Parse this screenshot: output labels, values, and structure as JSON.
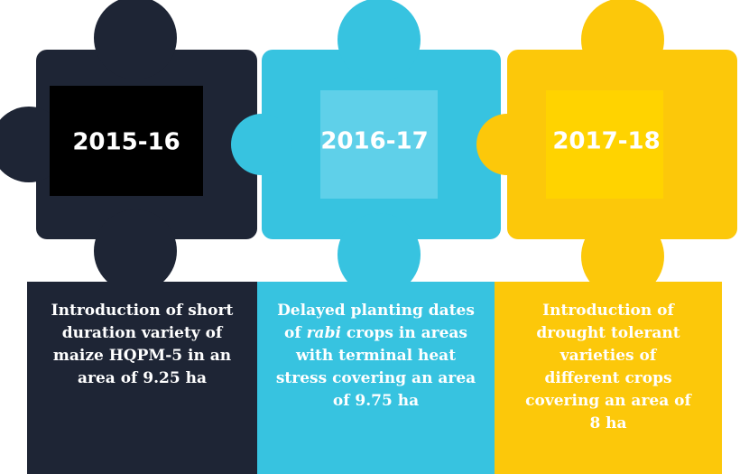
{
  "steps": [
    {
      "year": "2015-16",
      "description": [
        "Introduction of short duration variety of maize HQPM-5 in an area of 9.25 ha"
      ]
    },
    {
      "year": "2016-17",
      "description": [
        "Delayed planting dates of ",
        "rabi",
        " crops in areas with terminal heat stress covering an area of 9.75 ha"
      ]
    },
    {
      "year": "2017-18",
      "description": [
        "Introduction of drought tolerant varieties of different crops covering an area of 8 ha"
      ]
    }
  ]
}
